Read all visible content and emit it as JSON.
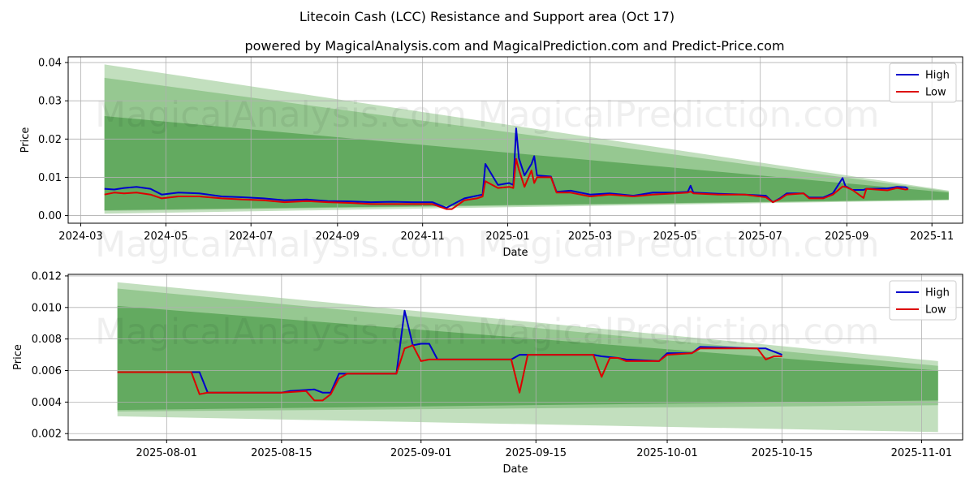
{
  "figure": {
    "title": "Litecoin Cash (LCC) Resistance and Support area (Oct 17)",
    "subtitle": "powered by MagicalAnalysis.com and MagicalPrediction.com and Predict-Price.com",
    "watermarks": [
      "MagicalAnalysis.com",
      "MagicalPrediction.com"
    ]
  },
  "colors": {
    "high": "#0000cc",
    "low": "#dd0000",
    "band_light": "#b7d9b3",
    "band_mid": "#8ec48a",
    "band_dark": "#5aa557",
    "grid": "#b0b0b0"
  },
  "chart_data": [
    {
      "type": "line",
      "xlabel": "Date",
      "ylabel": "Price",
      "x_axis": "date",
      "xlim": [
        "2024-02-21",
        "2025-11-23"
      ],
      "ylim": [
        -0.002,
        0.0415
      ],
      "xticks": [
        "2024-03",
        "2024-05",
        "2024-07",
        "2024-09",
        "2024-11",
        "2025-01",
        "2025-03",
        "2025-05",
        "2025-07",
        "2025-09",
        "2025-11"
      ],
      "xtick_dates": [
        "2024-03-01",
        "2024-05-01",
        "2024-07-01",
        "2024-09-01",
        "2024-11-01",
        "2025-01-01",
        "2025-03-01",
        "2025-05-01",
        "2025-07-01",
        "2025-09-01",
        "2025-11-01"
      ],
      "yticks": [
        0.0,
        0.01,
        0.02,
        0.03,
        0.04
      ],
      "ytick_labels": [
        "0.00",
        "0.01",
        "0.02",
        "0.03",
        "0.04"
      ],
      "grid": true,
      "legend": "top-right",
      "bands": [
        {
          "x": [
            "2024-03-18",
            "2025-11-13"
          ],
          "upper": [
            0.0395,
            0.0065
          ],
          "lower": [
            0.0005,
            0.004
          ],
          "shade": "light"
        },
        {
          "x": [
            "2024-03-18",
            "2025-11-13"
          ],
          "upper": [
            0.036,
            0.0063
          ],
          "lower": [
            0.0012,
            0.0041
          ],
          "shade": "mid"
        },
        {
          "x": [
            "2024-03-18",
            "2025-11-13"
          ],
          "upper": [
            0.026,
            0.006
          ],
          "lower": [
            0.0014,
            0.0042
          ],
          "shade": "dark"
        }
      ],
      "series": [
        {
          "name": "High",
          "x": [
            "2024-03-18",
            "2024-03-25",
            "2024-04-01",
            "2024-04-10",
            "2024-04-20",
            "2024-04-28",
            "2024-05-10",
            "2024-05-25",
            "2024-06-10",
            "2024-06-25",
            "2024-07-10",
            "2024-07-25",
            "2024-08-10",
            "2024-08-25",
            "2024-09-10",
            "2024-09-25",
            "2024-10-10",
            "2024-10-25",
            "2024-11-08",
            "2024-11-18",
            "2024-11-22",
            "2024-12-01",
            "2024-12-10",
            "2024-12-14",
            "2024-12-16",
            "2024-12-25",
            "2025-01-02",
            "2025-01-05",
            "2025-01-07",
            "2025-01-09",
            "2025-01-13",
            "2025-01-18",
            "2025-01-20",
            "2025-01-22",
            "2025-02-01",
            "2025-02-05",
            "2025-02-15",
            "2025-03-01",
            "2025-03-15",
            "2025-04-01",
            "2025-04-15",
            "2025-05-01",
            "2025-05-10",
            "2025-05-12",
            "2025-05-14",
            "2025-06-01",
            "2025-06-20",
            "2025-07-05",
            "2025-07-10",
            "2025-07-15",
            "2025-07-20",
            "2025-08-01",
            "2025-08-05",
            "2025-08-15",
            "2025-08-22",
            "2025-08-29",
            "2025-08-31",
            "2025-09-05",
            "2025-09-13",
            "2025-09-15",
            "2025-09-30",
            "2025-10-07",
            "2025-10-13",
            "2025-10-15"
          ],
          "y": [
            0.007,
            0.0068,
            0.0072,
            0.0075,
            0.007,
            0.0055,
            0.006,
            0.0058,
            0.005,
            0.0048,
            0.0045,
            0.004,
            0.0042,
            0.0038,
            0.0037,
            0.0035,
            0.0036,
            0.0035,
            0.0035,
            0.002,
            0.0028,
            0.0045,
            0.0052,
            0.0055,
            0.0135,
            0.008,
            0.0085,
            0.008,
            0.0228,
            0.015,
            0.0105,
            0.0135,
            0.0155,
            0.0105,
            0.0102,
            0.0062,
            0.0065,
            0.0055,
            0.0058,
            0.0052,
            0.006,
            0.006,
            0.0062,
            0.0078,
            0.006,
            0.0057,
            0.0055,
            0.0052,
            0.0035,
            0.0045,
            0.0058,
            0.0058,
            0.0047,
            0.0047,
            0.0058,
            0.0098,
            0.0077,
            0.0067,
            0.0067,
            0.007,
            0.0071,
            0.0075,
            0.0074,
            0.007
          ]
        },
        {
          "name": "Low",
          "x": [
            "2024-03-18",
            "2024-03-25",
            "2024-04-01",
            "2024-04-10",
            "2024-04-20",
            "2024-04-28",
            "2024-05-10",
            "2024-05-25",
            "2024-06-10",
            "2024-06-25",
            "2024-07-10",
            "2024-07-25",
            "2024-08-10",
            "2024-08-25",
            "2024-09-10",
            "2024-09-25",
            "2024-10-10",
            "2024-10-25",
            "2024-11-08",
            "2024-11-18",
            "2024-11-22",
            "2024-12-01",
            "2024-12-10",
            "2024-12-14",
            "2024-12-16",
            "2024-12-25",
            "2025-01-02",
            "2025-01-05",
            "2025-01-07",
            "2025-01-09",
            "2025-01-13",
            "2025-01-18",
            "2025-01-20",
            "2025-01-22",
            "2025-02-01",
            "2025-02-05",
            "2025-02-15",
            "2025-03-01",
            "2025-03-15",
            "2025-04-01",
            "2025-04-15",
            "2025-05-01",
            "2025-05-10",
            "2025-05-12",
            "2025-05-14",
            "2025-06-01",
            "2025-06-20",
            "2025-07-05",
            "2025-07-10",
            "2025-07-15",
            "2025-07-20",
            "2025-08-01",
            "2025-08-05",
            "2025-08-15",
            "2025-08-22",
            "2025-08-29",
            "2025-08-31",
            "2025-09-05",
            "2025-09-13",
            "2025-09-15",
            "2025-09-30",
            "2025-10-07",
            "2025-10-13",
            "2025-10-15"
          ],
          "y": [
            0.0055,
            0.006,
            0.0058,
            0.006,
            0.0055,
            0.0045,
            0.005,
            0.005,
            0.0045,
            0.0042,
            0.004,
            0.0035,
            0.0038,
            0.0035,
            0.0033,
            0.003,
            0.003,
            0.003,
            0.003,
            0.0017,
            0.0017,
            0.004,
            0.0045,
            0.005,
            0.009,
            0.0072,
            0.0075,
            0.0072,
            0.0148,
            0.012,
            0.0075,
            0.0118,
            0.0085,
            0.01,
            0.01,
            0.006,
            0.006,
            0.005,
            0.0055,
            0.005,
            0.0055,
            0.0058,
            0.006,
            0.0063,
            0.0058,
            0.0055,
            0.0055,
            0.0048,
            0.0035,
            0.0043,
            0.0055,
            0.0058,
            0.0045,
            0.0045,
            0.0055,
            0.0076,
            0.0075,
            0.0067,
            0.0046,
            0.007,
            0.0066,
            0.0072,
            0.0068,
            0.0069
          ]
        }
      ]
    },
    {
      "type": "line",
      "xlabel": "Date",
      "ylabel": "Price",
      "x_axis": "date",
      "xlim": [
        "2025-07-20",
        "2025-11-06"
      ],
      "ylim": [
        0.0016,
        0.0121
      ],
      "xticks": [
        "2025-08-01",
        "2025-08-15",
        "2025-09-01",
        "2025-09-15",
        "2025-10-01",
        "2025-10-15",
        "2025-11-01"
      ],
      "xtick_dates": [
        "2025-08-01",
        "2025-08-15",
        "2025-09-01",
        "2025-09-15",
        "2025-10-01",
        "2025-10-15",
        "2025-11-01"
      ],
      "yticks": [
        0.002,
        0.004,
        0.006,
        0.008,
        0.01,
        0.012
      ],
      "ytick_labels": [
        "0.002",
        "0.004",
        "0.006",
        "0.008",
        "0.010",
        "0.012"
      ],
      "grid": true,
      "legend": "top-right",
      "bands": [
        {
          "x": [
            "2025-07-26",
            "2025-11-03"
          ],
          "upper": [
            0.0116,
            0.0066
          ],
          "lower": [
            0.0031,
            0.0021
          ],
          "shade": "light"
        },
        {
          "x": [
            "2025-07-26",
            "2025-11-03"
          ],
          "upper": [
            0.0112,
            0.0063
          ],
          "lower": [
            0.0034,
            0.0038
          ],
          "shade": "mid"
        },
        {
          "x": [
            "2025-07-26",
            "2025-11-03"
          ],
          "upper": [
            0.0101,
            0.006
          ],
          "lower": [
            0.0035,
            0.0041
          ],
          "shade": "dark"
        }
      ],
      "series": [
        {
          "name": "High",
          "x": [
            "2025-07-26",
            "2025-08-04",
            "2025-08-05",
            "2025-08-06",
            "2025-08-15",
            "2025-08-16",
            "2025-08-19",
            "2025-08-20",
            "2025-08-21",
            "2025-08-22",
            "2025-08-23",
            "2025-08-29",
            "2025-08-30",
            "2025-08-31",
            "2025-09-01",
            "2025-09-02",
            "2025-09-03",
            "2025-09-12",
            "2025-09-13",
            "2025-09-22",
            "2025-09-23",
            "2025-09-25",
            "2025-09-26",
            "2025-09-30",
            "2025-10-01",
            "2025-10-04",
            "2025-10-05",
            "2025-10-12",
            "2025-10-13",
            "2025-10-15"
          ],
          "y": [
            0.0059,
            0.0059,
            0.0059,
            0.0046,
            0.0046,
            0.0047,
            0.0048,
            0.0046,
            0.0046,
            0.0058,
            0.0058,
            0.0058,
            0.0098,
            0.0076,
            0.0077,
            0.0077,
            0.0067,
            0.0067,
            0.007,
            0.007,
            0.0069,
            0.0068,
            0.0067,
            0.0066,
            0.0071,
            0.0071,
            0.0075,
            0.0074,
            0.0074,
            0.007
          ]
        },
        {
          "name": "Low",
          "x": [
            "2025-07-26",
            "2025-08-04",
            "2025-08-05",
            "2025-08-06",
            "2025-08-15",
            "2025-08-18",
            "2025-08-19",
            "2025-08-20",
            "2025-08-21",
            "2025-08-22",
            "2025-08-23",
            "2025-08-29",
            "2025-08-30",
            "2025-08-31",
            "2025-09-01",
            "2025-09-02",
            "2025-09-03",
            "2025-09-12",
            "2025-09-13",
            "2025-09-14",
            "2025-09-22",
            "2025-09-23",
            "2025-09-24",
            "2025-09-25",
            "2025-09-26",
            "2025-09-30",
            "2025-10-01",
            "2025-10-04",
            "2025-10-05",
            "2025-10-12",
            "2025-10-13",
            "2025-10-14",
            "2025-10-15"
          ],
          "y": [
            0.0059,
            0.0059,
            0.0045,
            0.0046,
            0.0046,
            0.0047,
            0.0041,
            0.0041,
            0.0045,
            0.0055,
            0.0058,
            0.0058,
            0.0074,
            0.0076,
            0.0066,
            0.0067,
            0.0067,
            0.0067,
            0.0046,
            0.007,
            0.007,
            0.0056,
            0.0068,
            0.0068,
            0.0066,
            0.0066,
            0.007,
            0.0071,
            0.0074,
            0.0074,
            0.0067,
            0.0069,
            0.0069
          ]
        }
      ]
    }
  ]
}
